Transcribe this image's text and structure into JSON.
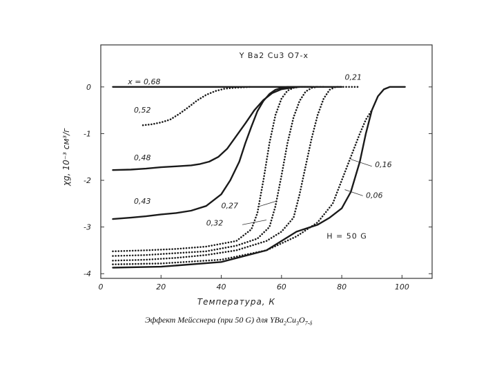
{
  "chart_data": {
    "type": "line",
    "title": "Y Ba2 Cu3 O7-x",
    "xlabel": "Температура, К",
    "ylabel": "χg, 10⁻³ см³/г",
    "xlim": [
      0,
      110
    ],
    "ylim": [
      -4.1,
      0.9
    ],
    "x_ticks": [
      "0",
      "20",
      "40",
      "60",
      "80",
      "100"
    ],
    "y_ticks": [
      "0",
      "-1",
      "-2",
      "-3",
      "-4"
    ],
    "annotation_field": "H = 50 G",
    "x_prefix": "x = ",
    "series": [
      {
        "name": "0,68",
        "style": "solid",
        "label_pos": [
          9,
          0.06
        ],
        "x": [
          4,
          20,
          40,
          50,
          60,
          70,
          80
        ],
        "y": [
          0,
          0,
          0,
          0,
          0,
          0,
          0
        ]
      },
      {
        "name": "0,52",
        "style": "dotted",
        "label_pos": [
          11,
          -0.55
        ],
        "x": [
          14,
          17,
          20,
          23,
          26,
          29,
          32,
          35,
          38,
          41,
          44,
          47,
          50
        ],
        "y": [
          -0.82,
          -0.8,
          -0.76,
          -0.7,
          -0.58,
          -0.44,
          -0.29,
          -0.17,
          -0.09,
          -0.04,
          -0.02,
          -0.01,
          0
        ]
      },
      {
        "name": "0,48",
        "style": "solid",
        "label_pos": [
          11,
          -1.57
        ],
        "x": [
          4,
          10,
          15,
          20,
          25,
          30,
          33,
          36,
          39,
          42,
          45,
          48,
          51,
          54,
          57,
          60,
          63,
          66,
          70
        ],
        "y": [
          -1.78,
          -1.77,
          -1.75,
          -1.72,
          -1.7,
          -1.68,
          -1.65,
          -1.6,
          -1.5,
          -1.32,
          -1.05,
          -0.78,
          -0.5,
          -0.28,
          -0.13,
          -0.05,
          -0.02,
          0,
          0
        ]
      },
      {
        "name": "0,43",
        "style": "solid",
        "label_pos": [
          11,
          -2.5
        ],
        "x": [
          4,
          10,
          15,
          20,
          25,
          30,
          35,
          40,
          43,
          46,
          48,
          50,
          52,
          54,
          56,
          58,
          60,
          62,
          65,
          68
        ],
        "y": [
          -2.83,
          -2.8,
          -2.77,
          -2.73,
          -2.7,
          -2.65,
          -2.55,
          -2.3,
          -2.0,
          -1.6,
          -1.2,
          -0.85,
          -0.52,
          -0.3,
          -0.15,
          -0.06,
          -0.02,
          0,
          0,
          0
        ]
      },
      {
        "name": "0,27",
        "style": "dotted",
        "label_pos": [
          40,
          -2.6
        ],
        "x": [
          4,
          15,
          25,
          35,
          45,
          50,
          52,
          54,
          56,
          58,
          60,
          62,
          64,
          66,
          68,
          72
        ],
        "y": [
          -3.52,
          -3.5,
          -3.47,
          -3.42,
          -3.3,
          -3.05,
          -2.7,
          -2.0,
          -1.2,
          -0.6,
          -0.25,
          -0.08,
          -0.02,
          0,
          0,
          0
        ]
      },
      {
        "name": "0,32",
        "style": "dotted",
        "label_pos": [
          35,
          -2.97
        ],
        "x": [
          4,
          15,
          25,
          35,
          45,
          52,
          56,
          58,
          60,
          62,
          64,
          66,
          68,
          70,
          72,
          74
        ],
        "y": [
          -3.62,
          -3.6,
          -3.56,
          -3.52,
          -3.4,
          -3.25,
          -3.0,
          -2.55,
          -1.9,
          -1.2,
          -0.65,
          -0.3,
          -0.1,
          -0.02,
          0,
          0
        ]
      },
      {
        "name": "0,21",
        "style": "dotted",
        "label_pos": [
          81,
          0.15
        ],
        "x": [
          4,
          15,
          25,
          35,
          45,
          55,
          60,
          64,
          66,
          68,
          70,
          72,
          74,
          76,
          78,
          82,
          86
        ],
        "y": [
          -3.72,
          -3.7,
          -3.66,
          -3.6,
          -3.5,
          -3.3,
          -3.1,
          -2.8,
          -2.3,
          -1.7,
          -1.1,
          -0.6,
          -0.25,
          -0.06,
          0,
          0,
          0
        ]
      },
      {
        "name": "0,16",
        "style": "dotted",
        "label_pos": [
          91,
          -1.72
        ],
        "x": [
          4,
          20,
          40,
          55,
          65,
          72,
          77,
          80,
          83,
          86,
          88,
          90
        ],
        "y": [
          -3.8,
          -3.78,
          -3.7,
          -3.5,
          -3.2,
          -2.9,
          -2.5,
          -2.0,
          -1.5,
          -1.0,
          -0.7,
          -0.5
        ]
      },
      {
        "name": "0,06",
        "style": "solid",
        "label_pos": [
          88,
          -2.38
        ],
        "x": [
          4,
          20,
          40,
          55,
          65,
          72,
          76,
          80,
          83,
          86,
          88,
          90,
          92,
          94,
          96,
          98,
          101
        ],
        "y": [
          -3.87,
          -3.85,
          -3.75,
          -3.5,
          -3.1,
          -2.95,
          -2.8,
          -2.6,
          -2.25,
          -1.6,
          -1.0,
          -0.5,
          -0.2,
          -0.05,
          0,
          0,
          0
        ]
      }
    ]
  },
  "caption": {
    "prefix": "Эффект Мейсснера (при 50 G) для YBa",
    "s1": "2",
    "mid": "Cu",
    "s2": "3",
    "mid2": "O",
    "s3": "7-δ"
  }
}
